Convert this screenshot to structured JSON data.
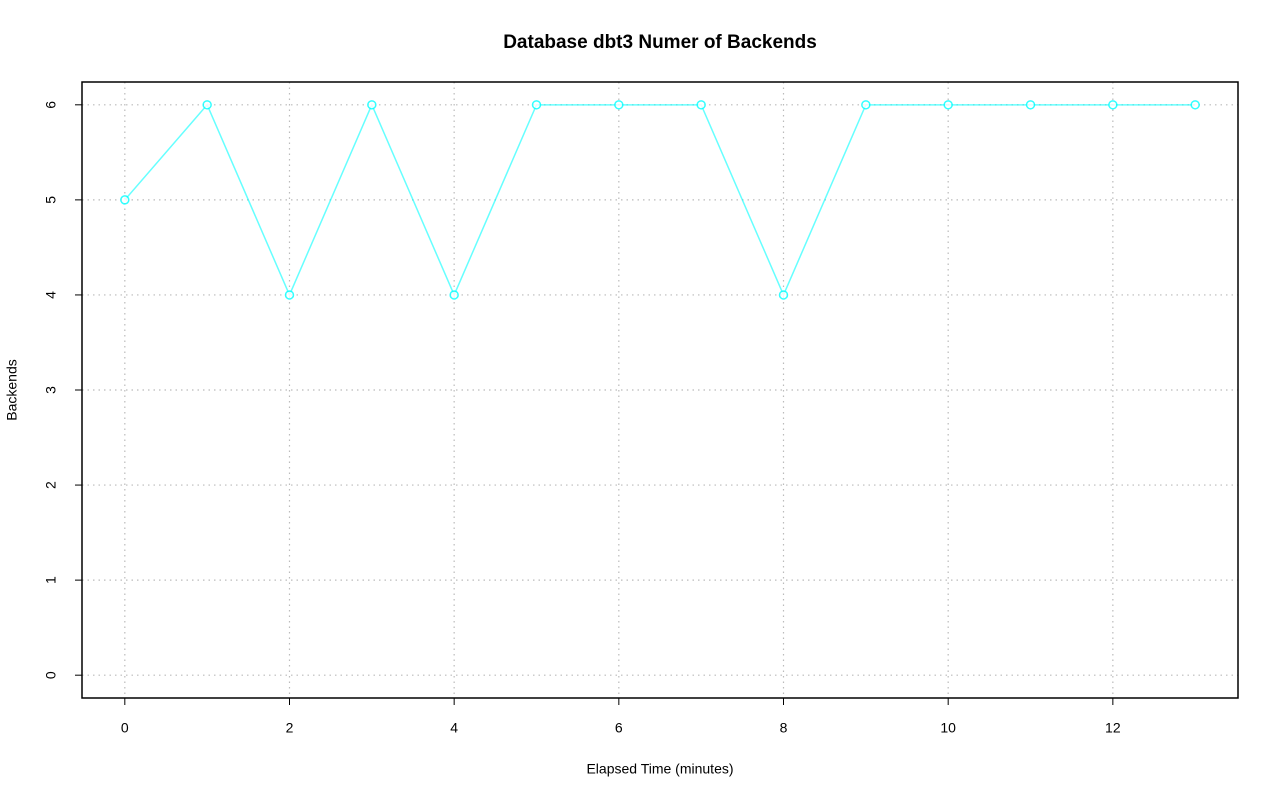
{
  "chart_data": {
    "type": "line",
    "title": "Database dbt3 Numer of Backends",
    "xlabel": "Elapsed Time (minutes)",
    "ylabel": "Backends",
    "x": [
      0,
      1,
      2,
      3,
      4,
      5,
      6,
      7,
      8,
      9,
      10,
      11,
      12,
      13
    ],
    "series": [
      {
        "name": "Backends",
        "color": "#00ffff",
        "values": [
          5,
          6,
          4,
          6,
          4,
          6,
          6,
          6,
          4,
          6,
          6,
          6,
          6,
          6
        ]
      }
    ],
    "xlim": [
      -0.52,
      13.52
    ],
    "xticks": [
      0,
      2,
      4,
      6,
      8,
      10,
      12
    ],
    "ylim": [
      -0.24,
      6.24
    ],
    "yticks": [
      0,
      1,
      2,
      3,
      4,
      5,
      6
    ],
    "grid": true
  }
}
